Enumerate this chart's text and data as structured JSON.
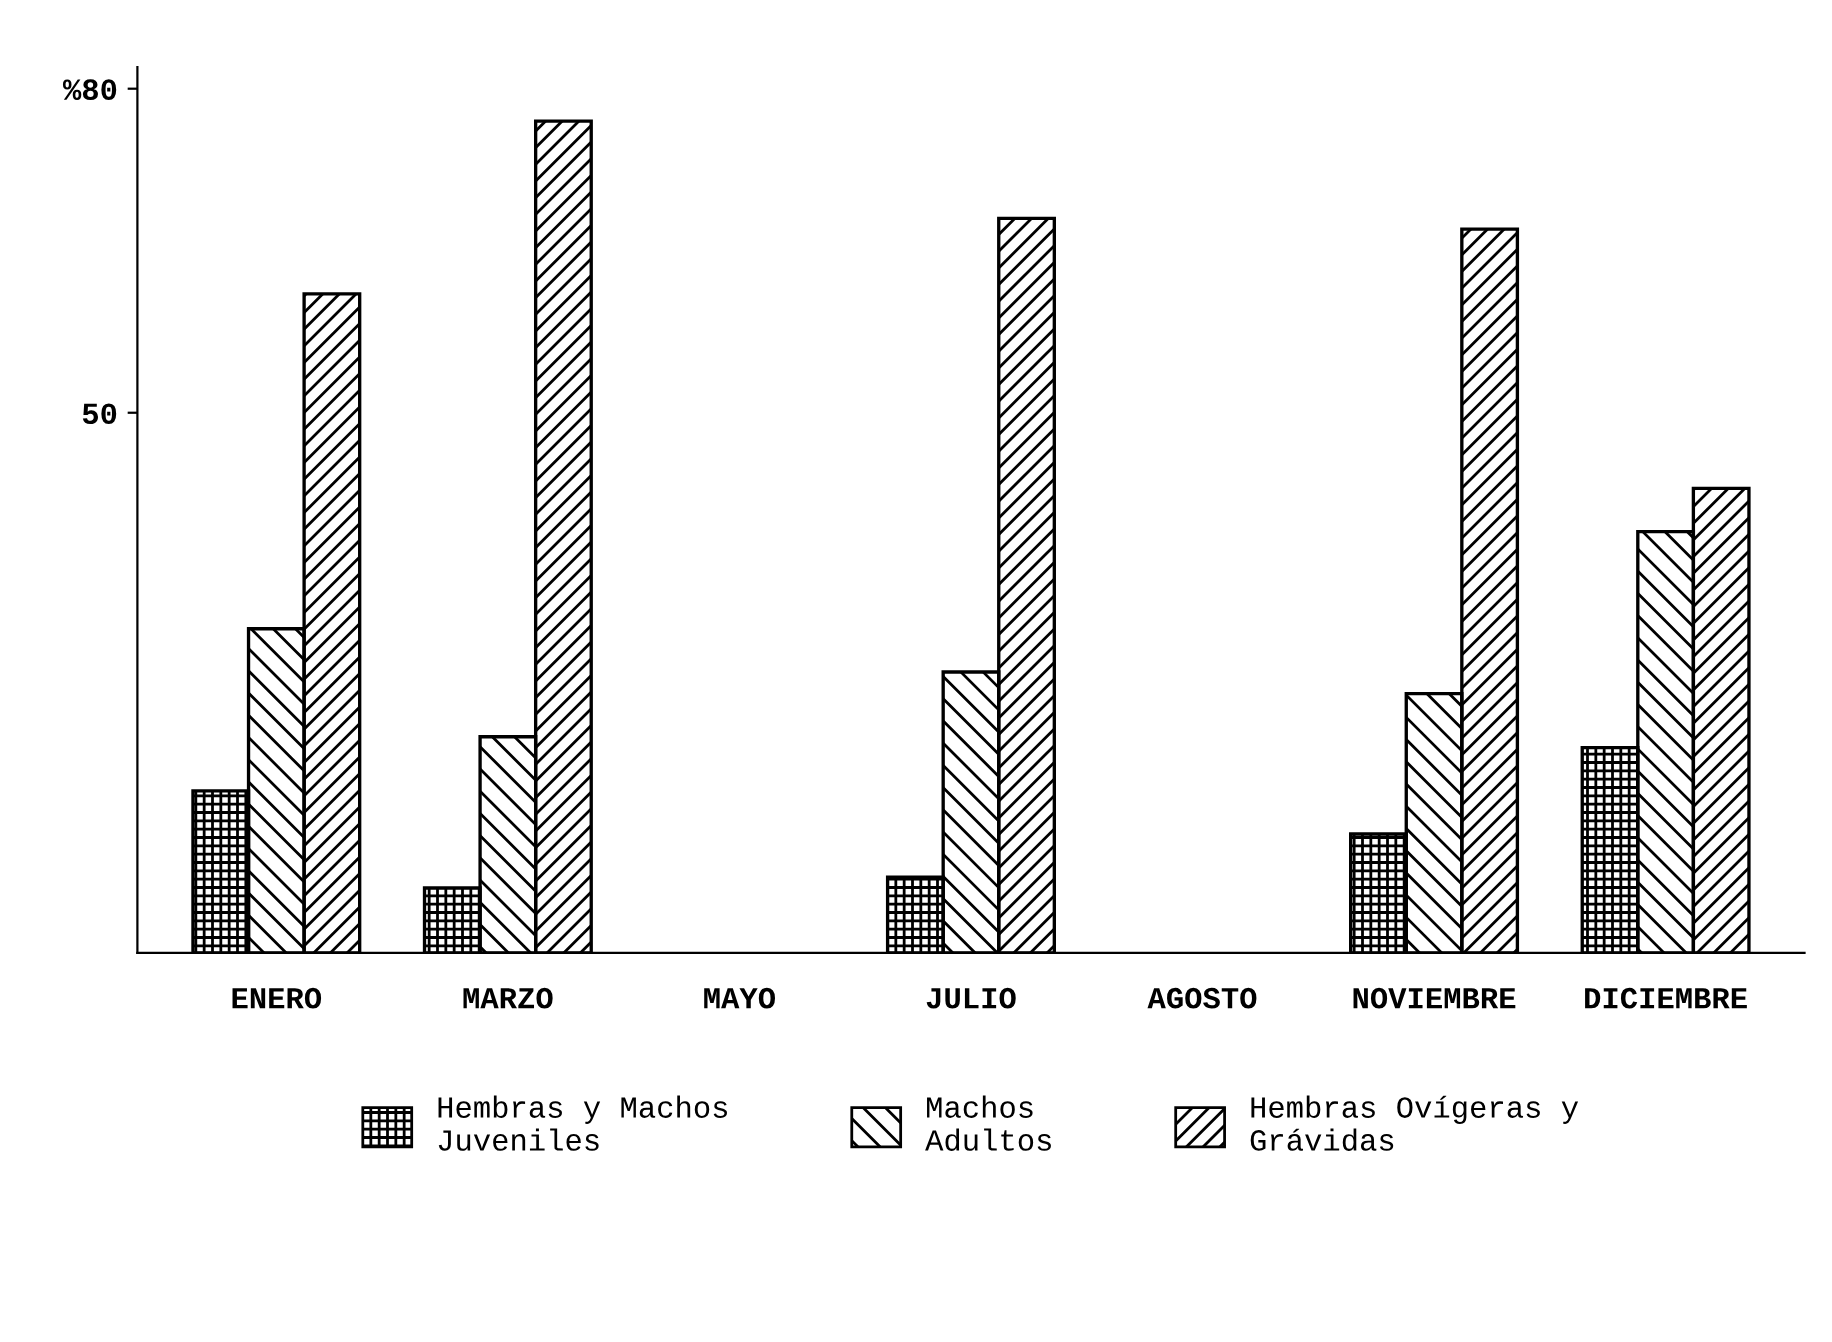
{
  "chart_data": {
    "type": "bar",
    "categories": [
      "ENERO",
      "MARZO",
      "MAYO",
      "JULIO",
      "AGOSTO",
      "NOVIEMBRE",
      "DICIEMBRE"
    ],
    "series": [
      {
        "name": "Hembras y Machos\nJuveniles",
        "color": "#000000",
        "values": [
          15,
          6,
          null,
          7,
          null,
          11,
          19
        ]
      },
      {
        "name": "Machos\nAdultos",
        "color": "#000000",
        "values": [
          30,
          20,
          null,
          26,
          null,
          24,
          39
        ]
      },
      {
        "name": "Hembras Ovígeras y\nGrávidas",
        "color": "#000000",
        "values": [
          61,
          77,
          null,
          68,
          null,
          67,
          43
        ]
      }
    ],
    "ylim": [
      0,
      82
    ],
    "yticks": [
      50,
      {
        "value": 80,
        "label": "%80"
      }
    ],
    "grid": false,
    "legend": "bottom"
  }
}
